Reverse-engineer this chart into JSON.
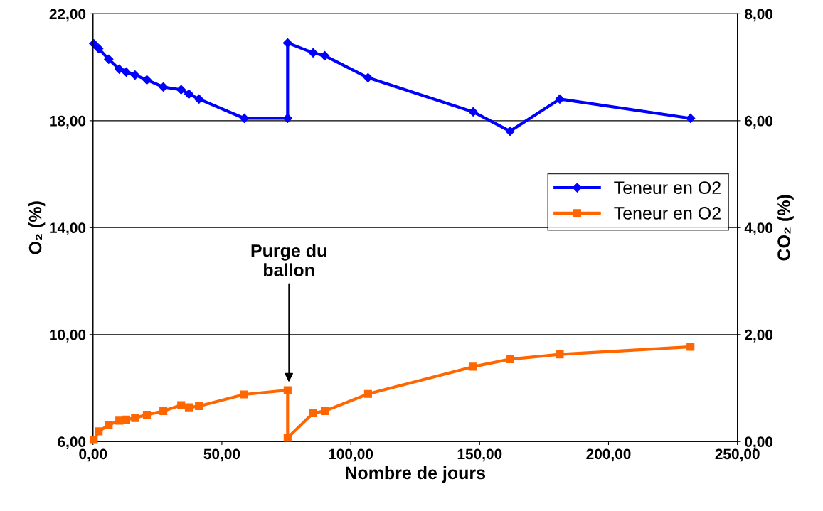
{
  "chart_data": {
    "type": "line",
    "xlabel": "Nombre de jours",
    "ylabel": "O₂ (%)",
    "y2label": "CO₂ (%)",
    "xlim": [
      0,
      250
    ],
    "xticks": [
      {
        "value": 0,
        "label": "0,00"
      },
      {
        "value": 50,
        "label": "50,00"
      },
      {
        "value": 100,
        "label": "100,00"
      },
      {
        "value": 150,
        "label": "150,00"
      },
      {
        "value": 200,
        "label": "200,00"
      },
      {
        "value": 250,
        "label": "250,00"
      }
    ],
    "ylim": [
      6,
      22
    ],
    "yticks": [
      {
        "value": 6,
        "label": "6,00"
      },
      {
        "value": 10,
        "label": "10,00"
      },
      {
        "value": 14,
        "label": "14,00"
      },
      {
        "value": 18,
        "label": "18,00"
      },
      {
        "value": 22,
        "label": "22,00"
      }
    ],
    "y2lim": [
      0,
      8
    ],
    "y2ticks": [
      {
        "value": 0,
        "label": "0,00"
      },
      {
        "value": 2,
        "label": "2,00"
      },
      {
        "value": 4,
        "label": "4,00"
      },
      {
        "value": 6,
        "label": "6,00"
      },
      {
        "value": 8,
        "label": "8,00"
      }
    ],
    "grid": "y",
    "legend": "right",
    "line_style": "solid",
    "annotations": [
      {
        "text": "Purge du\nballon",
        "x": 76,
        "y": 8.15
      }
    ],
    "series": [
      {
        "name": "Teneur en O2",
        "color": "#0000ff",
        "marker": "diamond",
        "x": [
          0.3,
          2.2,
          6.1,
          10.2,
          12.9,
          16.3,
          20.9,
          27.3,
          34.2,
          37.2,
          41.1,
          58.7,
          75.5,
          75.5,
          85.4,
          89.9,
          106.7,
          147.5,
          161.8,
          181.1,
          231.8
        ],
        "values": [
          20.88,
          20.7,
          20.3,
          19.93,
          19.82,
          19.71,
          19.53,
          19.26,
          19.16,
          19.0,
          18.81,
          18.09,
          18.09,
          20.91,
          20.54,
          20.43,
          19.61,
          18.33,
          17.61,
          18.81,
          18.09
        ]
      },
      {
        "name": "Teneur en O2",
        "color": "#ff6600",
        "marker": "square",
        "axis": "y2",
        "x": [
          0.3,
          2.2,
          6.1,
          10.2,
          12.9,
          16.3,
          20.9,
          27.3,
          34.2,
          37.2,
          41.1,
          58.7,
          75.5,
          75.5,
          85.4,
          89.9,
          106.7,
          147.5,
          161.8,
          181.1,
          231.8
        ],
        "values": [
          0.03,
          0.19,
          0.31,
          0.39,
          0.41,
          0.44,
          0.5,
          0.57,
          0.68,
          0.64,
          0.66,
          0.88,
          0.96,
          0.07,
          0.53,
          0.57,
          0.89,
          1.4,
          1.54,
          1.63,
          1.77
        ]
      }
    ]
  }
}
